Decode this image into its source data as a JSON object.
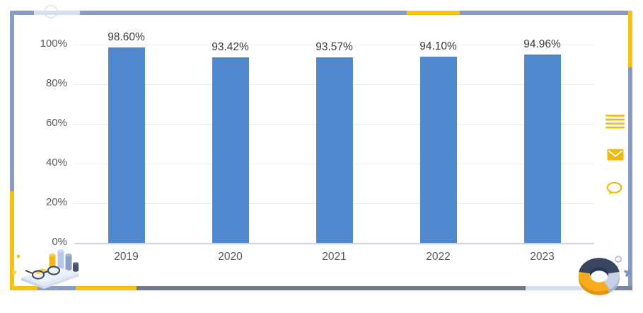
{
  "colors": {
    "bar": "#5288ce",
    "grid": "#ececec",
    "axis_line": "#ccd5e4",
    "axis_text": "#595959",
    "label_text": "#3a3a3a",
    "frame_slate": "#8b9cc2",
    "frame_yellow": "#f6c313",
    "frame_gray": "#6f7a8b",
    "frame_light": "#d7deee",
    "icon_yellow": "#f1b90e"
  },
  "chart_data": {
    "type": "bar",
    "title": "",
    "categories": [
      "2019",
      "2020",
      "2021",
      "2022",
      "2023"
    ],
    "values": [
      98.6,
      93.42,
      93.57,
      94.1,
      94.96
    ],
    "value_labels": [
      "98.60%",
      "93.42%",
      "93.57%",
      "94.10%",
      "94.96%"
    ],
    "y_ticks": [
      "100%",
      "80%",
      "60%",
      "40%",
      "20%",
      "0%"
    ],
    "y_tick_values": [
      100,
      80,
      60,
      40,
      20,
      0
    ],
    "ylim": [
      0,
      100
    ],
    "xlabel": "",
    "ylabel": "",
    "grid": true,
    "legend": false,
    "bar_color": "#5288ce"
  },
  "side_icons": [
    {
      "name": "menu-icon"
    },
    {
      "name": "mail-icon"
    },
    {
      "name": "chat-icon"
    }
  ],
  "decorations": [
    {
      "name": "desk-analytics-illustration"
    },
    {
      "name": "donut-chart-illustration"
    },
    {
      "name": "frame-border"
    }
  ]
}
